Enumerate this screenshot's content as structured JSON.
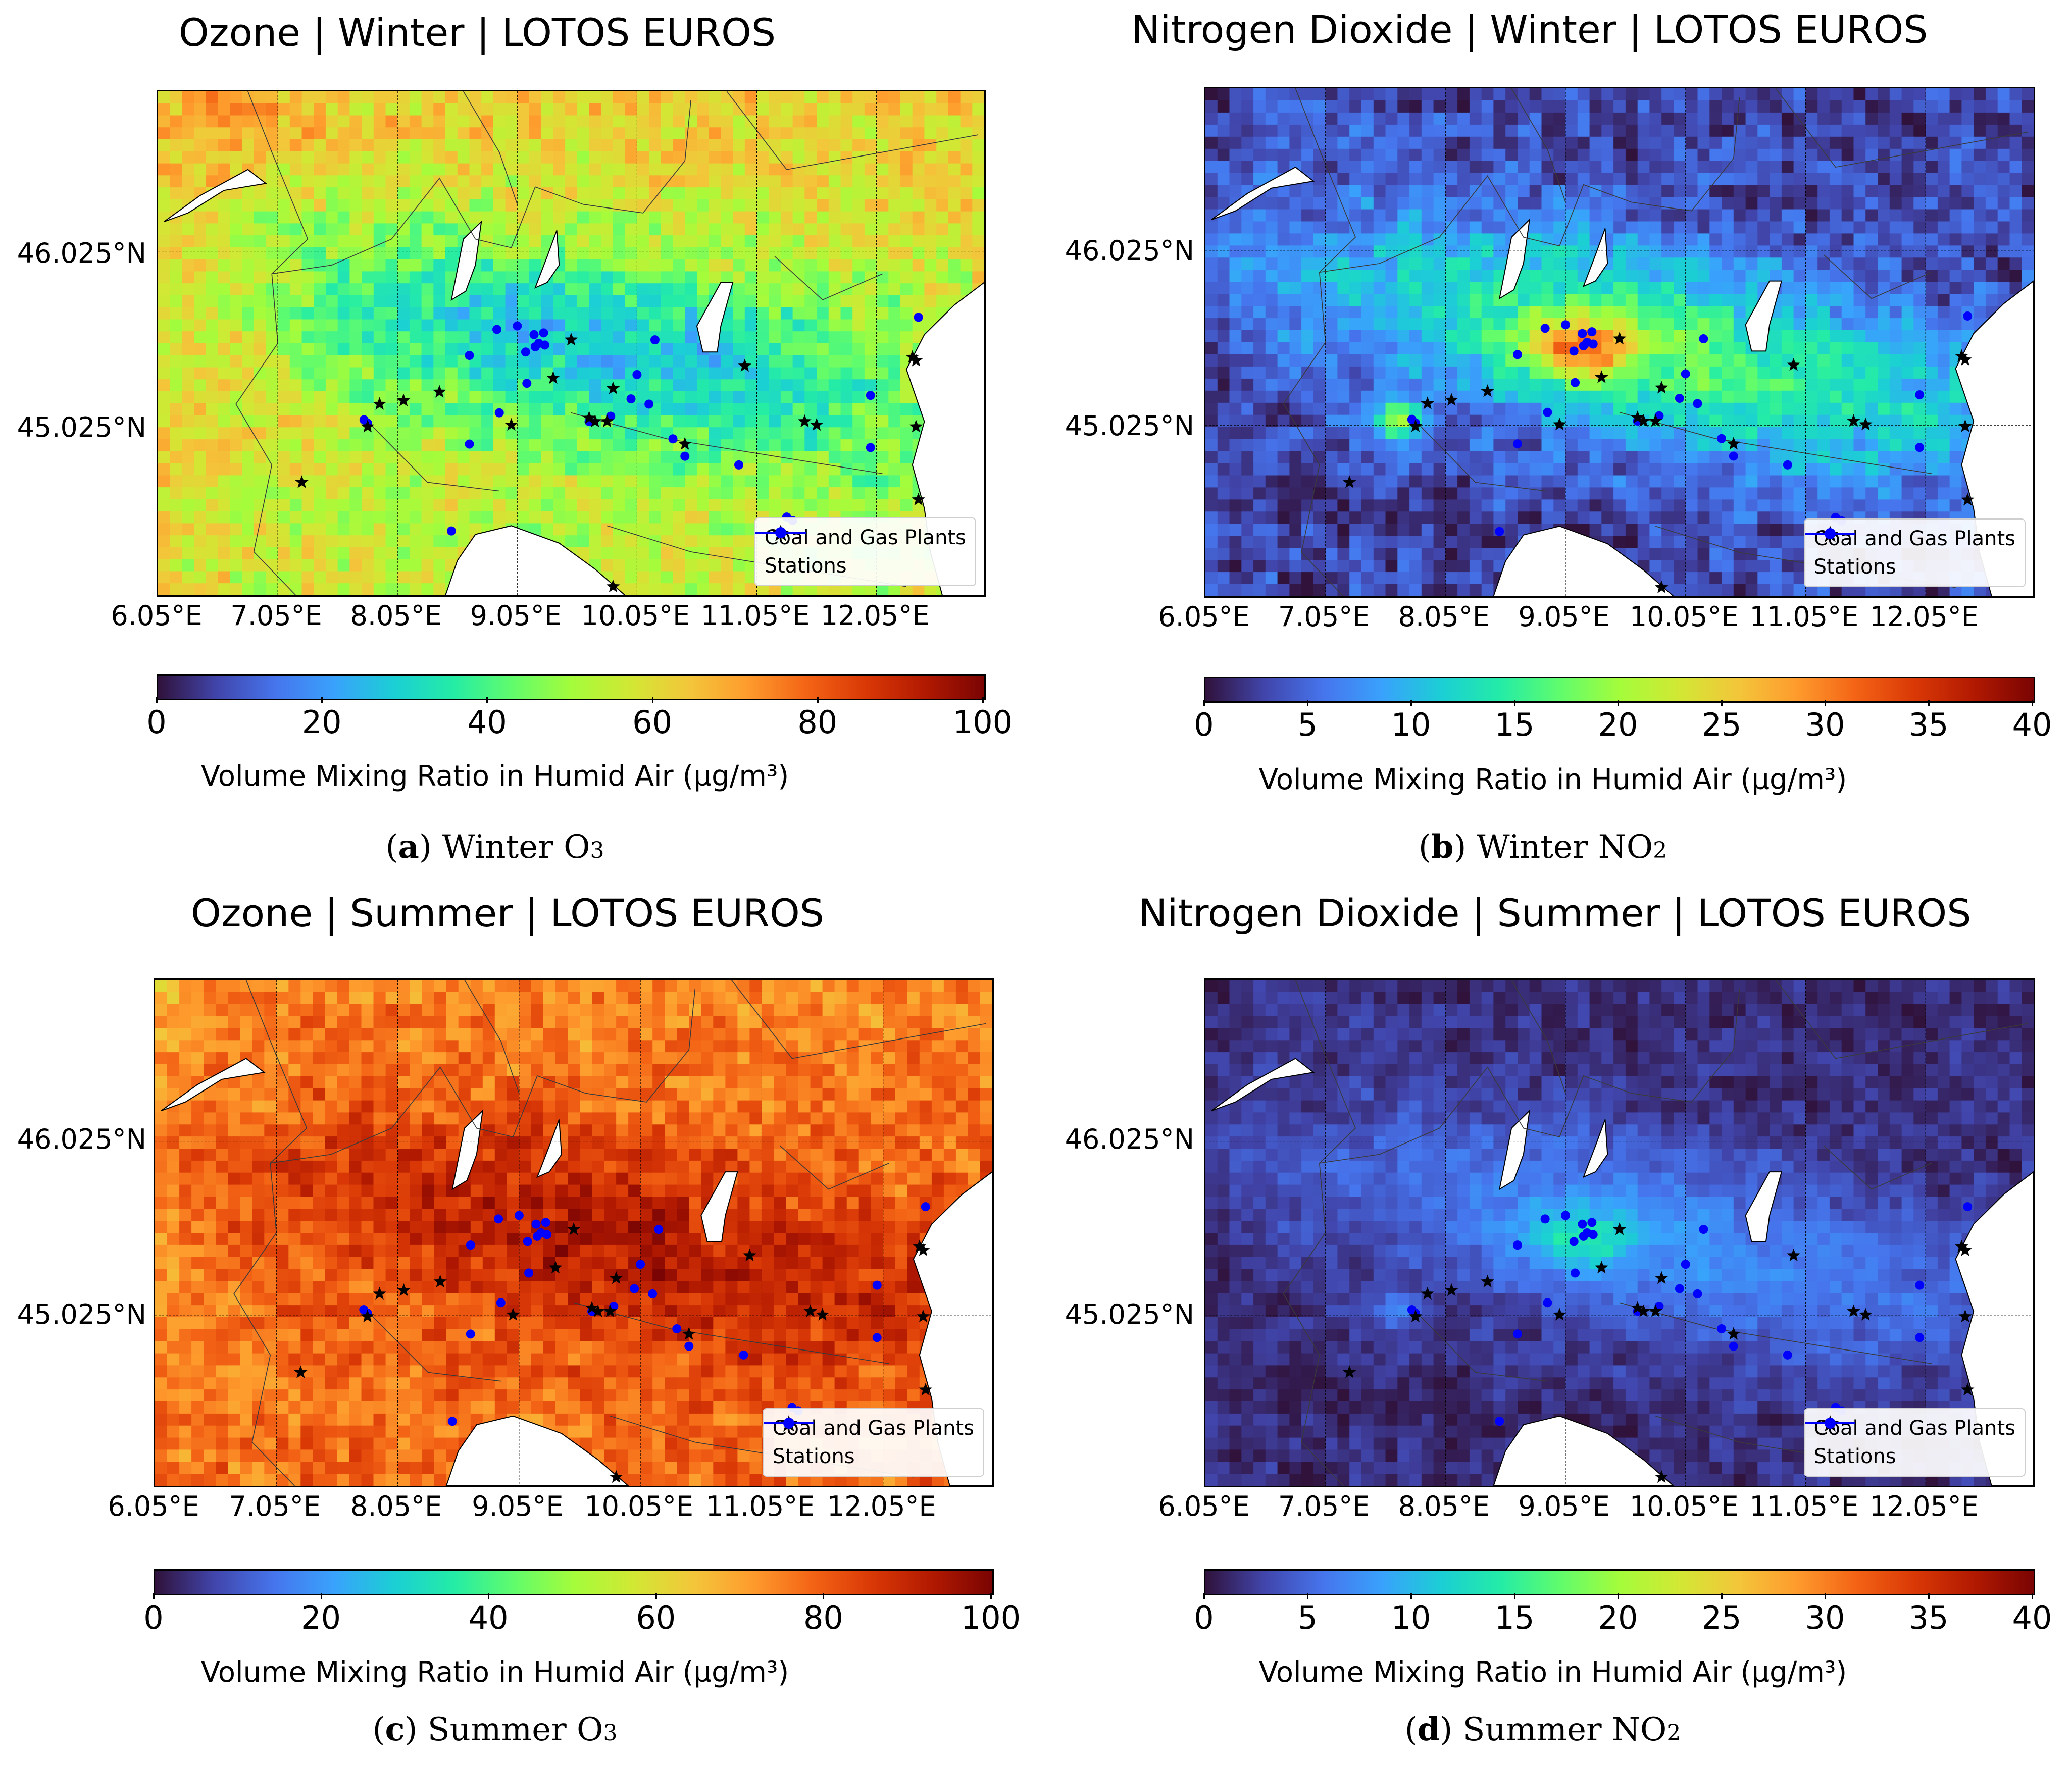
{
  "chart_data": [
    {
      "id": "a",
      "type": "heatmap",
      "title": "Ozone | Winter | LOTOS EUROS",
      "pollutant": "ozone",
      "season": "winter",
      "caption_letter": "a",
      "caption_text": "Winter O",
      "caption_sub": "3",
      "colorbar_range": [
        0,
        100
      ],
      "colorbar_ticks": [
        "0",
        "20",
        "40",
        "60",
        "80",
        "100"
      ],
      "colorbar_label": "Volume Mixing Ratio in Humid Air (µg/m³)",
      "xticks": [
        "6.05°E",
        "7.05°E",
        "8.05°E",
        "9.05°E",
        "10.05°E",
        "11.05°E",
        "12.05°E"
      ],
      "yticks": [
        "46.025°N",
        "45.025°N"
      ],
      "legend": [
        "Coal and Gas Plants",
        "Stations"
      ]
    },
    {
      "id": "b",
      "type": "heatmap",
      "title": "Nitrogen Dioxide | Winter | LOTOS EUROS",
      "pollutant": "no2",
      "season": "winter",
      "caption_letter": "b",
      "caption_text": "Winter NO",
      "caption_sub": "2",
      "colorbar_range": [
        0,
        40
      ],
      "colorbar_ticks": [
        "0",
        "5",
        "10",
        "15",
        "20",
        "25",
        "30",
        "35",
        "40"
      ],
      "colorbar_label": "Volume Mixing Ratio in Humid Air (µg/m³)",
      "xticks": [
        "6.05°E",
        "7.05°E",
        "8.05°E",
        "9.05°E",
        "10.05°E",
        "11.05°E",
        "12.05°E"
      ],
      "yticks": [
        "46.025°N",
        "45.025°N"
      ],
      "legend": [
        "Coal and Gas Plants",
        "Stations"
      ]
    },
    {
      "id": "c",
      "type": "heatmap",
      "title": "Ozone | Summer | LOTOS EUROS",
      "pollutant": "ozone",
      "season": "summer",
      "caption_letter": "c",
      "caption_text": "Summer O",
      "caption_sub": "3",
      "colorbar_range": [
        0,
        100
      ],
      "colorbar_ticks": [
        "0",
        "20",
        "40",
        "60",
        "80",
        "100"
      ],
      "colorbar_label": "Volume Mixing Ratio in Humid Air (µg/m³)",
      "xticks": [
        "6.05°E",
        "7.05°E",
        "8.05°E",
        "9.05°E",
        "10.05°E",
        "11.05°E",
        "12.05°E"
      ],
      "yticks": [
        "46.025°N",
        "45.025°N"
      ],
      "legend": [
        "Coal and Gas Plants",
        "Stations"
      ]
    },
    {
      "id": "d",
      "type": "heatmap",
      "title": "Nitrogen Dioxide | Summer | LOTOS EUROS",
      "pollutant": "no2",
      "season": "summer",
      "caption_letter": "d",
      "caption_text": "Summer NO",
      "caption_sub": "2",
      "colorbar_range": [
        0,
        40
      ],
      "colorbar_ticks": [
        "0",
        "5",
        "10",
        "15",
        "20",
        "25",
        "30",
        "35",
        "40"
      ],
      "colorbar_label": "Volume Mixing Ratio in Humid Air (µg/m³)",
      "xticks": [
        "6.05°E",
        "7.05°E",
        "8.05°E",
        "9.05°E",
        "10.05°E",
        "11.05°E",
        "12.05°E"
      ],
      "yticks": [
        "46.025°N",
        "45.025°N"
      ],
      "legend": [
        "Coal and Gas Plants",
        "Stations"
      ]
    }
  ],
  "stations": [
    [
      7.77,
      45.06
    ],
    [
      7.8,
      45.04
    ],
    [
      8.5,
      44.42
    ],
    [
      8.65,
      45.43
    ],
    [
      8.65,
      44.92
    ],
    [
      8.88,
      45.58
    ],
    [
      8.9,
      45.1
    ],
    [
      9.05,
      45.6
    ],
    [
      9.12,
      45.45
    ],
    [
      9.19,
      45.55
    ],
    [
      9.2,
      45.48
    ],
    [
      9.23,
      45.5
    ],
    [
      9.27,
      45.56
    ],
    [
      9.28,
      45.49
    ],
    [
      9.13,
      45.27
    ],
    [
      9.65,
      45.05
    ],
    [
      9.83,
      45.08
    ],
    [
      10.0,
      45.18
    ],
    [
      10.05,
      45.32
    ],
    [
      10.15,
      45.15
    ],
    [
      10.2,
      45.52
    ],
    [
      10.35,
      44.95
    ],
    [
      10.45,
      44.85
    ],
    [
      10.9,
      44.8
    ],
    [
      11.3,
      44.5
    ],
    [
      11.35,
      44.48
    ],
    [
      12.0,
      45.2
    ],
    [
      12.0,
      44.9
    ],
    [
      12.4,
      45.65
    ]
  ],
  "plants": [
    [
      7.25,
      44.7
    ],
    [
      7.8,
      45.02
    ],
    [
      7.9,
      45.15
    ],
    [
      8.1,
      45.17
    ],
    [
      8.4,
      45.22
    ],
    [
      9.0,
      45.03
    ],
    [
      9.35,
      45.3
    ],
    [
      9.5,
      45.52
    ],
    [
      9.65,
      45.07
    ],
    [
      9.7,
      45.05
    ],
    [
      9.8,
      45.05
    ],
    [
      9.85,
      45.24
    ],
    [
      10.45,
      44.92
    ],
    [
      10.95,
      45.37
    ],
    [
      11.45,
      45.05
    ],
    [
      11.55,
      45.03
    ],
    [
      12.35,
      45.42
    ],
    [
      12.38,
      45.4
    ],
    [
      12.38,
      45.02
    ],
    [
      12.4,
      44.6
    ],
    [
      9.85,
      44.1
    ]
  ]
}
